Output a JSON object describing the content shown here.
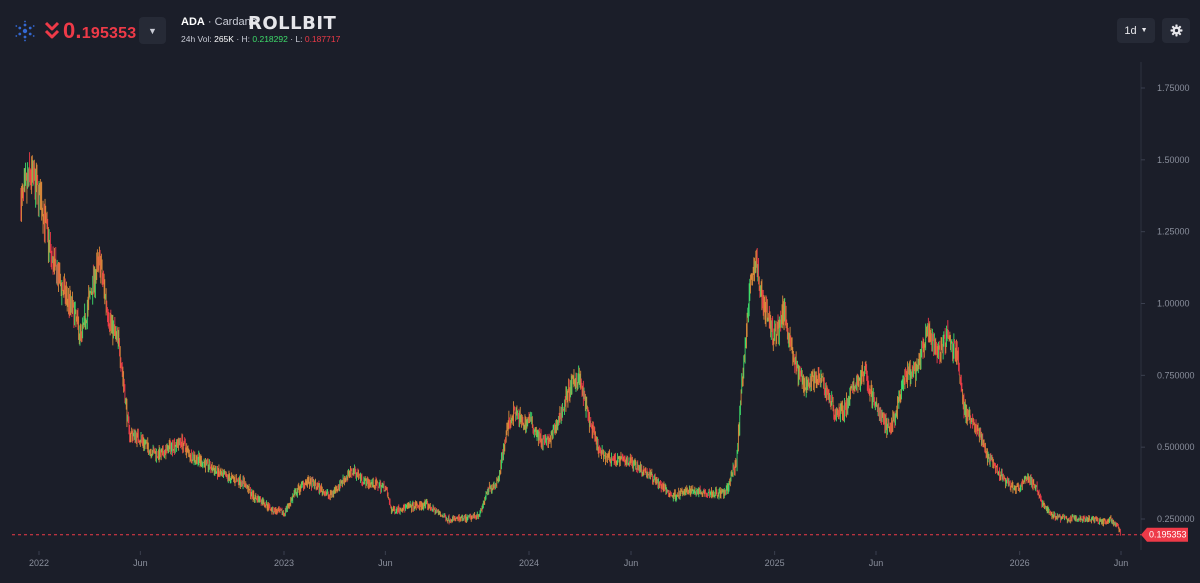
{
  "header": {
    "price_int": "0.",
    "price_dec": "195353",
    "symbol": "ADA",
    "separator": " · ",
    "name": "Cardano",
    "brand": "ROLLBIT",
    "vol_label": "24h Vol: ",
    "vol_value": "265K",
    "high_label": " · H: ",
    "high_value": "0.218292",
    "low_label": " · L: ",
    "low_value": "0.187717",
    "timeframe": "1d",
    "dropdown_icon": "caret-down",
    "settings_icon": "gear"
  },
  "colors": {
    "background": "#1b1e29",
    "up": "#3ddc6a",
    "down": "#ee3a48",
    "candle_mid": "#d9893a"
  },
  "chart_data": {
    "type": "line",
    "title": "",
    "xlabel": "",
    "ylabel": "",
    "ylim": [
      0.17,
      1.82
    ],
    "y_ticks": [
      0.25,
      0.5,
      0.75,
      1.0,
      1.25,
      1.5,
      1.75
    ],
    "y_tick_labels": [
      "0.250000",
      "0.500000",
      "0.750000",
      "1.00000",
      "1.25000",
      "1.50000",
      "1.75000"
    ],
    "x_tick_labels": [
      "2022",
      "Jun",
      "2023",
      "Jun",
      "2024",
      "Jun",
      "2025",
      "Jun",
      "2026",
      "Jun"
    ],
    "x_tick_dates": [
      "2022-01-01",
      "2022-06-01",
      "2023-01-01",
      "2023-06-01",
      "2024-01-01",
      "2024-06-01",
      "2025-01-01",
      "2025-06-01",
      "2026-01-01",
      "2026-06-01"
    ],
    "current_price": 0.195353,
    "current_price_label": "0.195353",
    "series": [
      {
        "x": [
          "2021-12-05",
          "2021-12-20",
          "2022-01-05",
          "2022-01-20",
          "2022-02-05",
          "2022-02-20",
          "2022-03-05",
          "2022-03-20",
          "2022-04-01",
          "2022-04-15",
          "2022-05-01",
          "2022-05-15",
          "2022-06-01",
          "2022-06-15",
          "2022-07-01",
          "2022-07-15",
          "2022-08-01",
          "2022-08-15",
          "2022-09-01",
          "2022-10-01",
          "2022-11-01",
          "2022-11-15",
          "2022-12-01",
          "2022-12-15",
          "2023-01-01",
          "2023-01-15",
          "2023-02-01",
          "2023-02-15",
          "2023-03-10",
          "2023-04-01",
          "2023-04-15",
          "2023-05-01",
          "2023-06-01",
          "2023-06-10",
          "2023-07-01",
          "2023-08-01",
          "2023-09-01",
          "2023-10-01",
          "2023-10-20",
          "2023-11-01",
          "2023-11-15",
          "2023-12-01",
          "2023-12-10",
          "2023-12-25",
          "2024-01-01",
          "2024-01-20",
          "2024-02-01",
          "2024-02-15",
          "2024-03-01",
          "2024-03-15",
          "2024-04-01",
          "2024-04-15",
          "2024-05-01",
          "2024-06-01",
          "2024-07-01",
          "2024-08-01",
          "2024-08-15",
          "2024-09-01",
          "2024-10-01",
          "2024-10-20",
          "2024-11-05",
          "2024-11-15",
          "2024-11-25",
          "2024-12-03",
          "2024-12-15",
          "2025-01-01",
          "2025-01-15",
          "2025-02-01",
          "2025-02-15",
          "2025-03-01",
          "2025-03-15",
          "2025-04-01",
          "2025-04-15",
          "2025-05-01",
          "2025-05-15",
          "2025-06-01",
          "2025-06-20",
          "2025-07-01",
          "2025-07-15",
          "2025-08-01",
          "2025-08-15",
          "2025-09-01",
          "2025-09-15",
          "2025-10-01",
          "2025-10-10",
          "2025-10-20",
          "2025-11-01",
          "2025-11-15",
          "2025-12-01",
          "2025-12-15",
          "2026-01-01",
          "2026-01-10",
          "2026-01-25",
          "2026-02-05",
          "2026-02-20",
          "2026-03-15",
          "2026-04-01",
          "2026-04-20",
          "2026-05-05",
          "2026-05-15",
          "2026-05-25",
          "2026-05-31"
        ],
        "y": [
          1.35,
          1.45,
          1.35,
          1.15,
          1.05,
          0.98,
          0.88,
          1.05,
          1.15,
          0.95,
          0.85,
          0.55,
          0.53,
          0.49,
          0.47,
          0.5,
          0.52,
          0.47,
          0.45,
          0.4,
          0.38,
          0.33,
          0.31,
          0.28,
          0.27,
          0.33,
          0.38,
          0.37,
          0.33,
          0.39,
          0.42,
          0.38,
          0.36,
          0.28,
          0.29,
          0.3,
          0.25,
          0.25,
          0.27,
          0.35,
          0.38,
          0.58,
          0.62,
          0.58,
          0.6,
          0.52,
          0.52,
          0.6,
          0.7,
          0.75,
          0.58,
          0.48,
          0.46,
          0.45,
          0.4,
          0.33,
          0.34,
          0.35,
          0.34,
          0.34,
          0.45,
          0.78,
          1.05,
          1.15,
          1.0,
          0.88,
          0.98,
          0.78,
          0.72,
          0.74,
          0.72,
          0.62,
          0.63,
          0.72,
          0.76,
          0.64,
          0.56,
          0.62,
          0.75,
          0.76,
          0.9,
          0.83,
          0.88,
          0.82,
          0.63,
          0.6,
          0.55,
          0.46,
          0.41,
          0.37,
          0.35,
          0.4,
          0.36,
          0.3,
          0.26,
          0.25,
          0.25,
          0.25,
          0.24,
          0.25,
          0.23,
          0.2
        ]
      }
    ]
  }
}
